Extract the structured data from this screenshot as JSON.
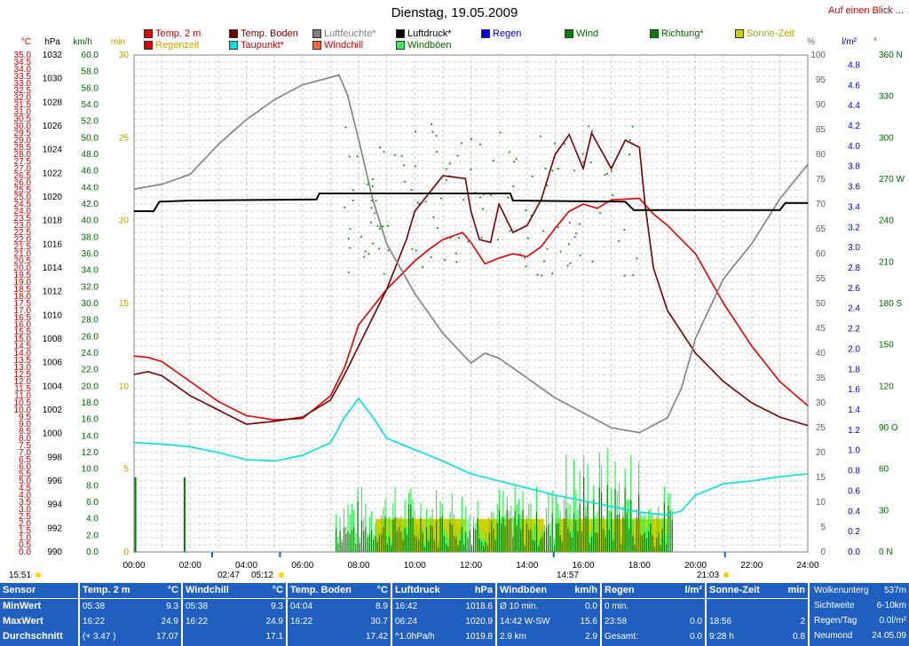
{
  "header": {
    "title": "Dienstag, 19.05.2009",
    "link": "Auf einen Blick ..."
  },
  "legend": [
    {
      "label": "Temp. 2 m",
      "color": "#e00000",
      "text_color": "#cc0000"
    },
    {
      "label": "Temp. Boden",
      "color": "#700000",
      "text_color": "#700000"
    },
    {
      "label": "Luftfeuchte*",
      "color": "#808080",
      "text_color": "#808080"
    },
    {
      "label": "Luftdruck*",
      "color": "#000000",
      "text_color": "#000000"
    },
    {
      "label": "Regen",
      "color": "#0000ff",
      "text_color": "#0000cc"
    },
    {
      "label": "Wind",
      "color": "#008000",
      "text_color": "#006600"
    },
    {
      "label": "Richtung*",
      "color": "#008000",
      "text_color": "#006600"
    },
    {
      "label": "Sonne-Zeit",
      "color": "#d0d000",
      "text_color": "#b0a000"
    },
    {
      "label": "Regenzeit",
      "color": "#e00000",
      "text_color": "#d0a000"
    },
    {
      "label": "Taupunkt*",
      "color": "#00dede",
      "text_color": "#cc0000"
    },
    {
      "label": "Windchill",
      "color": "#ff6633",
      "text_color": "#cc0000"
    },
    {
      "label": "Windböen",
      "color": "#33ee55",
      "text_color": "#006600"
    }
  ],
  "axis_units": {
    "temp": "°C",
    "press": "hPa",
    "wind": "km/h",
    "min": "min",
    "pct": "%",
    "rain": "l/m²",
    "dir": "°"
  },
  "chart_data": {
    "type": "line",
    "x_range": [
      "00:00",
      "24:00"
    ],
    "x_ticks": [
      "00:00",
      "02:00",
      "04:00",
      "06:00",
      "08:00",
      "10:00",
      "12:00",
      "14:00",
      "16:00",
      "18:00",
      "20:00",
      "22:00",
      "24:00"
    ],
    "axes": {
      "temp": {
        "label": "°C",
        "range": [
          0,
          35
        ],
        "step": 0.5
      },
      "pressure": {
        "label": "hPa",
        "range": [
          990,
          1032
        ],
        "step": 2
      },
      "wind": {
        "label": "km/h",
        "range": [
          0,
          60
        ],
        "step": 2
      },
      "minutes": {
        "label": "min",
        "range": [
          0,
          30
        ],
        "step": 5
      },
      "humidity": {
        "label": "%",
        "range": [
          0,
          100
        ],
        "step": 5
      },
      "rain": {
        "label": "l/m²",
        "range": [
          0,
          5.0
        ],
        "step": 0.2
      },
      "direction": {
        "label": "°",
        "ticks": [
          "0 N",
          "30",
          "60",
          "90 O",
          "120",
          "150",
          "180 S",
          "210",
          "240",
          "270 W",
          "300",
          "330",
          "360 N"
        ]
      }
    },
    "series": [
      {
        "name": "Temp. 2 m",
        "axis": "temp",
        "color": "#e00000",
        "points": [
          [
            0,
            13.8
          ],
          [
            0.5,
            13.7
          ],
          [
            1,
            13.4
          ],
          [
            2,
            12.0
          ],
          [
            3,
            10.6
          ],
          [
            4,
            9.6
          ],
          [
            5,
            9.3
          ],
          [
            6,
            9.4
          ],
          [
            7,
            11.0
          ],
          [
            7.5,
            13.0
          ],
          [
            8,
            16.0
          ],
          [
            9,
            18.5
          ],
          [
            10,
            20.5
          ],
          [
            10.5,
            21.3
          ],
          [
            11,
            22.0
          ],
          [
            11.7,
            22.5
          ],
          [
            12,
            21.8
          ],
          [
            12.5,
            20.3
          ],
          [
            13,
            20.7
          ],
          [
            13.5,
            21.0
          ],
          [
            14,
            20.8
          ],
          [
            14.5,
            21.5
          ],
          [
            15,
            22.8
          ],
          [
            15.5,
            24.0
          ],
          [
            16,
            24.5
          ],
          [
            16.5,
            24.2
          ],
          [
            17,
            24.8
          ],
          [
            18,
            24.9
          ],
          [
            18.5,
            23.8
          ],
          [
            19,
            23.0
          ],
          [
            20,
            21.0
          ],
          [
            21,
            17.5
          ],
          [
            22,
            14.5
          ],
          [
            23,
            12.0
          ],
          [
            24,
            10.3
          ]
        ]
      },
      {
        "name": "Temp. Boden",
        "axis": "temp",
        "color": "#700000",
        "points": [
          [
            0,
            12.5
          ],
          [
            0.5,
            12.7
          ],
          [
            1,
            12.4
          ],
          [
            2,
            11.0
          ],
          [
            3,
            10.0
          ],
          [
            4,
            9.0
          ],
          [
            5,
            9.2
          ],
          [
            6,
            9.5
          ],
          [
            7,
            10.7
          ],
          [
            7.5,
            12.5
          ],
          [
            8,
            14.5
          ],
          [
            9,
            18.5
          ],
          [
            9.7,
            22.0
          ],
          [
            10,
            24.0
          ],
          [
            11,
            26.5
          ],
          [
            11.8,
            26.3
          ],
          [
            12,
            24.0
          ],
          [
            12.3,
            22.0
          ],
          [
            12.7,
            21.8
          ],
          [
            13,
            24.5
          ],
          [
            13.5,
            22.5
          ],
          [
            14,
            23.0
          ],
          [
            14.5,
            24.8
          ],
          [
            15,
            28.0
          ],
          [
            15.5,
            29.4
          ],
          [
            16,
            27.0
          ],
          [
            16.3,
            29.5
          ],
          [
            17,
            27.0
          ],
          [
            17.5,
            29.0
          ],
          [
            18,
            28.5
          ],
          [
            18.2,
            24.5
          ],
          [
            18.5,
            20.0
          ],
          [
            19,
            17.0
          ],
          [
            20,
            14.0
          ],
          [
            21,
            12.0
          ],
          [
            22,
            10.5
          ],
          [
            23,
            9.5
          ],
          [
            24,
            8.9
          ]
        ]
      },
      {
        "name": "Luftfeuchte*",
        "axis": "humidity",
        "color": "#808080",
        "points": [
          [
            0,
            73
          ],
          [
            1,
            74
          ],
          [
            2,
            76
          ],
          [
            3,
            82
          ],
          [
            4,
            87
          ],
          [
            5,
            91
          ],
          [
            6,
            94
          ],
          [
            7,
            95.5
          ],
          [
            7.3,
            96
          ],
          [
            7.6,
            92
          ],
          [
            8,
            83
          ],
          [
            8.5,
            71
          ],
          [
            9,
            62
          ],
          [
            10,
            52
          ],
          [
            11,
            44
          ],
          [
            12,
            38
          ],
          [
            12.5,
            40
          ],
          [
            13,
            39
          ],
          [
            14,
            35
          ],
          [
            15,
            31
          ],
          [
            16,
            28
          ],
          [
            17,
            25
          ],
          [
            18,
            24
          ],
          [
            19,
            27
          ],
          [
            19.5,
            33
          ],
          [
            20,
            43
          ],
          [
            21,
            55
          ],
          [
            22,
            62
          ],
          [
            23,
            71
          ],
          [
            24,
            78
          ]
        ]
      },
      {
        "name": "Luftdruck*",
        "axis": "pressure",
        "color": "#000000",
        "points": [
          [
            0,
            1018.8
          ],
          [
            0.7,
            1018.8
          ],
          [
            0.9,
            1019.6
          ],
          [
            2,
            1019.7
          ],
          [
            6.5,
            1019.8
          ],
          [
            6.6,
            1020.3
          ],
          [
            13.4,
            1020.3
          ],
          [
            13.5,
            1019.7
          ],
          [
            17.5,
            1019.6
          ],
          [
            17.8,
            1018.9
          ],
          [
            23,
            1018.9
          ],
          [
            23.2,
            1019.5
          ],
          [
            24,
            1019.5
          ]
        ]
      },
      {
        "name": "Taupunkt*",
        "axis": "temp",
        "color": "#00dede",
        "points": [
          [
            0,
            7.7
          ],
          [
            1,
            7.6
          ],
          [
            2,
            7.4
          ],
          [
            3,
            7.0
          ],
          [
            4,
            6.5
          ],
          [
            5,
            6.4
          ],
          [
            6,
            6.8
          ],
          [
            7,
            7.7
          ],
          [
            7.5,
            9.5
          ],
          [
            8,
            10.8
          ],
          [
            8.5,
            9.5
          ],
          [
            9,
            8.0
          ],
          [
            10,
            7.2
          ],
          [
            11,
            6.4
          ],
          [
            12,
            5.5
          ],
          [
            13,
            5.0
          ],
          [
            14,
            4.5
          ],
          [
            15,
            4.0
          ],
          [
            16,
            3.6
          ],
          [
            17,
            3.2
          ],
          [
            18,
            2.8
          ],
          [
            19,
            2.6
          ],
          [
            19.5,
            2.9
          ],
          [
            20,
            4.0
          ],
          [
            21,
            4.8
          ],
          [
            22,
            5.0
          ],
          [
            23,
            5.3
          ],
          [
            24,
            5.5
          ]
        ]
      }
    ],
    "wind": {
      "axis": "wind",
      "start": 7.2,
      "end": 19.2,
      "note": "Wind (dark green) and Windböen (light green) bars between 07:12 and 19:12"
    },
    "sunshine": {
      "axis": "minutes",
      "color": "#d0d000",
      "segments": [
        [
          8.6,
          11.8
        ],
        [
          12.2,
          13.4
        ],
        [
          13.5,
          14.6
        ],
        [
          15.0,
          19.0
        ]
      ],
      "height_min": 2
    },
    "markers": [
      {
        "label": "02:47",
        "x": 2.783
      },
      {
        "label": "05:12",
        "x": 5.2
      },
      {
        "label": "14:57",
        "x": 14.95
      },
      {
        "label": "21:03",
        "x": 21.05
      }
    ],
    "bottom_times": {
      "left": "15:51",
      "mid1": "02:47",
      "mid2": "05:12",
      "mid3": "14:57",
      "mid4": "21:03"
    }
  },
  "footer": {
    "sensor": {
      "head": "Sensor",
      "rows": [
        "MinWert",
        "MaxWert",
        "Durchschnitt"
      ]
    },
    "temp2m": {
      "head": "Temp. 2 m",
      "unit": "°C",
      "rows": [
        [
          "05:38",
          "9.3"
        ],
        [
          "16:22",
          "24.9"
        ],
        [
          "(+ 3.47 )",
          "17.07"
        ]
      ]
    },
    "windchill": {
      "head": "Windchill",
      "unit": "°C",
      "rows": [
        [
          "05:38",
          "9.3"
        ],
        [
          "16:22",
          "24.9"
        ],
        [
          "",
          "17.1"
        ]
      ]
    },
    "tempboden": {
      "head": "Temp. Boden",
      "unit": "°C",
      "rows": [
        [
          "04:04",
          "8.9"
        ],
        [
          "16:22",
          "30.7"
        ],
        [
          "",
          "17.42"
        ]
      ]
    },
    "luftdruck": {
      "head": "Luftdruck",
      "unit": "hPa",
      "rows": [
        [
          "16:42",
          "1018.6"
        ],
        [
          "06:24",
          "1020.9"
        ],
        [
          "^1.0hPa/h",
          "1019.8"
        ]
      ]
    },
    "windboeen": {
      "head": "Windböen",
      "unit": "km/h",
      "rows": [
        [
          "Ø 10 min.",
          "0.0"
        ],
        [
          "14:42  W-SW",
          "15.6"
        ],
        [
          "2.9 km",
          "2.9"
        ]
      ]
    },
    "regen": {
      "head": "Regen",
      "unit": "l/m²",
      "rows": [
        [
          "0 min.",
          ""
        ],
        [
          "23:58",
          "0.0"
        ],
        [
          "Gesamt:",
          "0.0"
        ]
      ]
    },
    "sonne": {
      "head": "Sonne-Zeit",
      "unit": "min",
      "rows": [
        [
          "",
          ""
        ],
        [
          "18:56",
          "2"
        ],
        [
          "9:28 h",
          "0.8"
        ]
      ]
    },
    "extra": {
      "rows": [
        [
          "Wolkenunterg",
          "537m"
        ],
        [
          "Sichtweite",
          "6-10km"
        ],
        [
          "Regen/Tag",
          "0.0l/m²"
        ],
        [
          "Neumond",
          "24.05.09"
        ]
      ]
    }
  }
}
